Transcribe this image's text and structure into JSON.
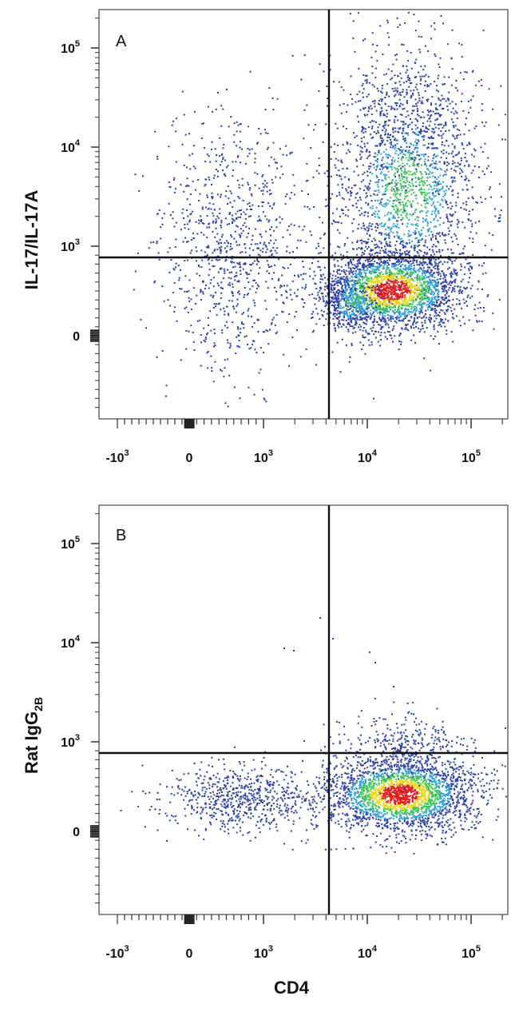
{
  "xlabel": "CD4",
  "chart_data": [
    {
      "type": "scatter",
      "panel_label": "A",
      "ylabel": "IL-17/IL-17A",
      "ylabel_sub": "",
      "x_scale": "biexponential",
      "y_scale": "biexponential",
      "x_ticks": [
        {
          "base": "-10",
          "exp": "3",
          "value": -1000
        },
        {
          "base": "0",
          "exp": "",
          "value": 0
        },
        {
          "base": "10",
          "exp": "3",
          "value": 1000
        },
        {
          "base": "10",
          "exp": "4",
          "value": 10000
        },
        {
          "base": "10",
          "exp": "5",
          "value": 100000
        }
      ],
      "y_ticks": [
        {
          "base": "0",
          "exp": "",
          "value": 0
        },
        {
          "base": "10",
          "exp": "3",
          "value": 1000
        },
        {
          "base": "10",
          "exp": "4",
          "value": 10000
        },
        {
          "base": "10",
          "exp": "5",
          "value": 100000
        }
      ],
      "gate": {
        "x": 4000,
        "y": 800
      },
      "populations": [
        {
          "name": "",
          "x_center": 20000,
          "y_center": 400,
          "density": "high",
          "color": "red"
        },
        {
          "name": "",
          "x_center": 15000,
          "y_center": 3000,
          "density": "medium",
          "color": "green"
        },
        {
          "name": "",
          "x_center": 400,
          "y_center": 600,
          "density": "low",
          "color": "blue"
        }
      ]
    },
    {
      "type": "scatter",
      "panel_label": "B",
      "ylabel": "Rat IgG",
      "ylabel_sub": "2B",
      "x_scale": "biexponential",
      "y_scale": "biexponential",
      "x_ticks": [
        {
          "base": "-10",
          "exp": "3",
          "value": -1000
        },
        {
          "base": "0",
          "exp": "",
          "value": 0
        },
        {
          "base": "10",
          "exp": "3",
          "value": 1000
        },
        {
          "base": "10",
          "exp": "4",
          "value": 10000
        },
        {
          "base": "10",
          "exp": "5",
          "value": 100000
        }
      ],
      "y_ticks": [
        {
          "base": "0",
          "exp": "",
          "value": 0
        },
        {
          "base": "10",
          "exp": "3",
          "value": 1000
        },
        {
          "base": "10",
          "exp": "4",
          "value": 10000
        },
        {
          "base": "10",
          "exp": "5",
          "value": 100000
        }
      ],
      "gate": {
        "x": 4000,
        "y": 800
      },
      "populations": [
        {
          "name": "",
          "x_center": 20000,
          "y_center": 250,
          "density": "high",
          "color": "red"
        },
        {
          "name": "",
          "x_center": 400,
          "y_center": 250,
          "density": "low",
          "color": "blue"
        }
      ]
    }
  ],
  "colors": {
    "low": "#2b3fa8",
    "medium_low": "#2fa0d8",
    "medium": "#3cc35a",
    "medium_high": "#e8d81e",
    "high": "#e21b1b",
    "gate_line": "#111111",
    "frame": "#444444"
  }
}
